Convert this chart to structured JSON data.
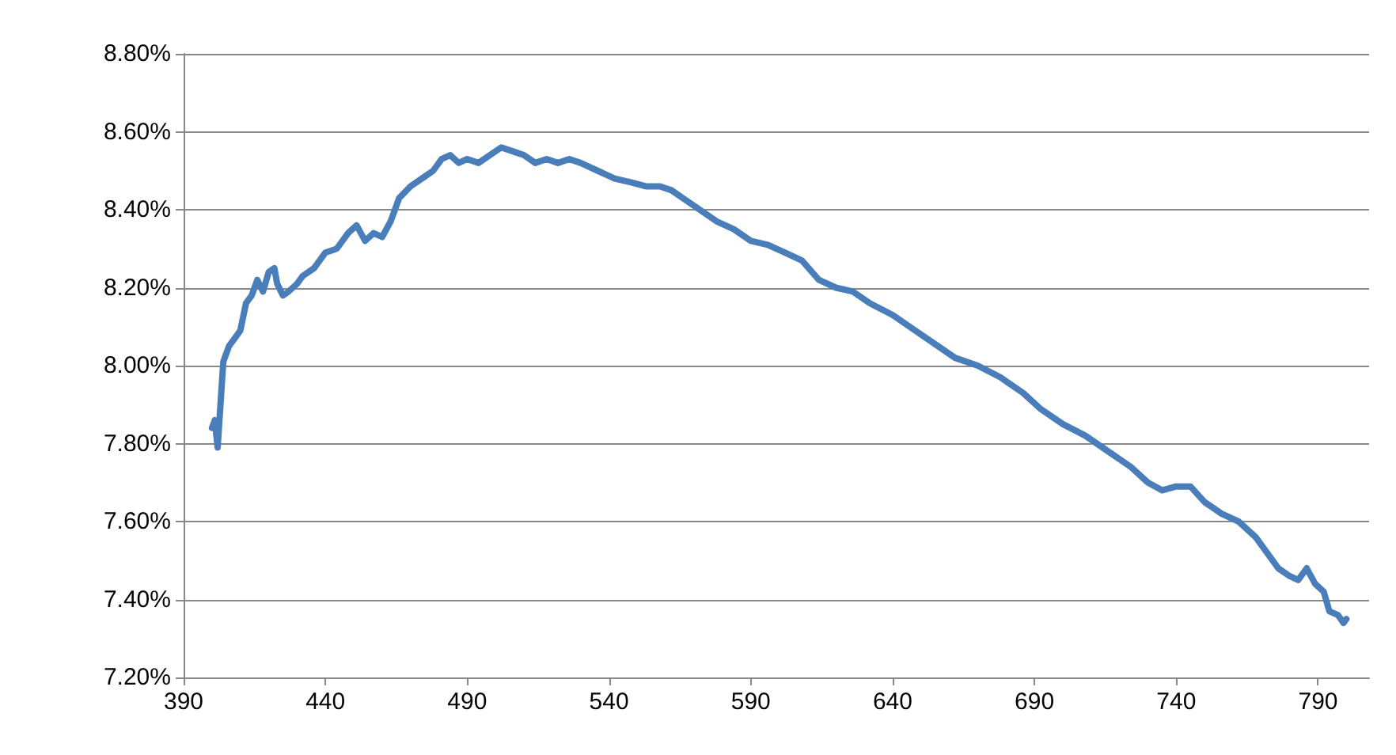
{
  "chart_data": {
    "type": "line",
    "x": [
      400,
      401,
      402,
      403,
      404,
      406,
      408,
      410,
      412,
      414,
      416,
      418,
      420,
      422,
      423,
      425,
      427,
      430,
      432,
      436,
      440,
      444,
      448,
      451,
      454,
      457,
      460,
      463,
      466,
      470,
      474,
      478,
      481,
      484,
      487,
      490,
      494,
      498,
      502,
      506,
      510,
      514,
      518,
      522,
      526,
      530,
      536,
      542,
      548,
      553,
      558,
      562,
      566,
      572,
      578,
      584,
      590,
      596,
      602,
      608,
      614,
      620,
      626,
      632,
      640,
      648,
      656,
      662,
      670,
      678,
      686,
      692,
      700,
      708,
      716,
      724,
      730,
      735,
      740,
      745,
      750,
      756,
      762,
      768,
      772,
      776,
      780,
      783,
      786,
      789,
      792,
      794,
      797,
      799,
      800
    ],
    "series": [
      {
        "color": "#4a7ebb",
        "values": [
          7.84,
          7.86,
          7.79,
          7.9,
          8.01,
          8.05,
          8.07,
          8.09,
          8.16,
          8.18,
          8.22,
          8.19,
          8.24,
          8.25,
          8.21,
          8.18,
          8.19,
          8.21,
          8.23,
          8.25,
          8.29,
          8.3,
          8.34,
          8.36,
          8.32,
          8.34,
          8.33,
          8.37,
          8.43,
          8.46,
          8.48,
          8.5,
          8.53,
          8.54,
          8.52,
          8.53,
          8.52,
          8.54,
          8.56,
          8.55,
          8.54,
          8.52,
          8.53,
          8.52,
          8.53,
          8.52,
          8.5,
          8.48,
          8.47,
          8.46,
          8.46,
          8.45,
          8.43,
          8.4,
          8.37,
          8.35,
          8.32,
          8.31,
          8.29,
          8.27,
          8.22,
          8.2,
          8.19,
          8.16,
          8.13,
          8.09,
          8.05,
          8.02,
          8,
          7.97,
          7.93,
          7.89,
          7.85,
          7.82,
          7.78,
          7.74,
          7.7,
          7.68,
          7.69,
          7.69,
          7.65,
          7.62,
          7.6,
          7.56,
          7.52,
          7.48,
          7.46,
          7.45,
          7.48,
          7.44,
          7.42,
          7.37,
          7.36,
          7.34,
          7.35
        ]
      }
    ],
    "xlim": [
      390,
      808
    ],
    "xticks": [
      390,
      440,
      490,
      540,
      590,
      640,
      690,
      740,
      790
    ],
    "ylim": [
      7.2,
      8.8
    ],
    "yticks": [
      {
        "value": 7.2,
        "label": "7.20%"
      },
      {
        "value": 7.4,
        "label": "7.40%"
      },
      {
        "value": 7.6,
        "label": "7.60%"
      },
      {
        "value": 7.8,
        "label": "7.80%"
      },
      {
        "value": 8.0,
        "label": "8.00%"
      },
      {
        "value": 8.2,
        "label": "8.20%"
      },
      {
        "value": 8.4,
        "label": "8.40%"
      },
      {
        "value": 8.6,
        "label": "8.60%"
      },
      {
        "value": 8.8,
        "label": "8.80%"
      }
    ],
    "grid": "y",
    "marker": "none",
    "line_style": "solid"
  }
}
